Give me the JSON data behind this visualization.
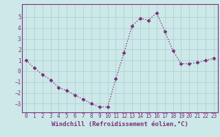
{
  "x": [
    0,
    1,
    2,
    3,
    4,
    5,
    6,
    7,
    8,
    9,
    10,
    11,
    12,
    13,
    14,
    15,
    16,
    17,
    18,
    19,
    20,
    21,
    22,
    23
  ],
  "y": [
    1.0,
    0.3,
    -0.3,
    -0.8,
    -1.5,
    -1.8,
    -2.2,
    -2.6,
    -3.0,
    -3.3,
    -3.3,
    -0.7,
    1.7,
    4.2,
    4.9,
    4.7,
    5.4,
    3.7,
    1.9,
    0.7,
    0.7,
    0.8,
    1.0,
    1.2
  ],
  "line_color": "#7b2f7b",
  "marker": "D",
  "markersize": 2.5,
  "linewidth": 1.0,
  "bg_color": "#cce8e8",
  "grid_color": "#aacccc",
  "xlabel": "Windchill (Refroidissement éolien,°C)",
  "xticks": [
    0,
    1,
    2,
    3,
    4,
    5,
    6,
    7,
    8,
    9,
    10,
    11,
    12,
    13,
    14,
    15,
    16,
    17,
    18,
    19,
    20,
    21,
    22,
    23
  ],
  "yticks": [
    -3,
    -2,
    -1,
    0,
    1,
    2,
    3,
    4,
    5
  ],
  "ylim": [
    -3.8,
    6.2
  ],
  "xlim": [
    -0.5,
    23.5
  ],
  "tick_fontsize": 5.5,
  "xlabel_fontsize": 6.5,
  "axis_label_color": "#7b2f7b",
  "tick_color": "#7b2f7b",
  "spine_color": "#7b2f7b"
}
